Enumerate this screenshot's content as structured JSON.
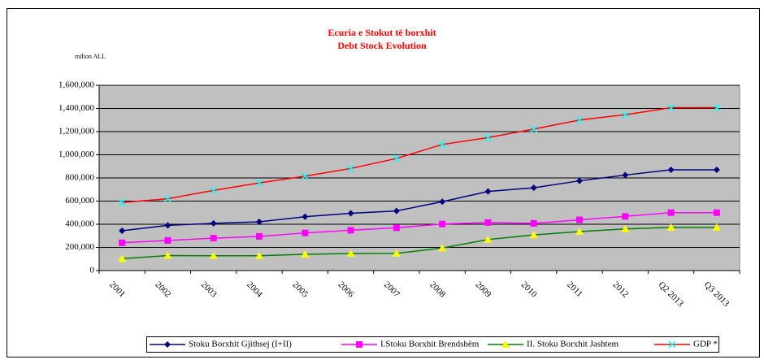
{
  "chart_data": {
    "type": "line",
    "title": "Ecuria e Stokut të borxhit",
    "subtitle": "Debt Stock Evolution",
    "y_axis_label": "milion ALL",
    "categories": [
      "2001",
      "2002",
      "2003",
      "2004",
      "2005",
      "2006",
      "2007",
      "2008",
      "2009",
      "2010",
      "2011",
      "2012",
      "Q2 2013",
      "Q3 2013"
    ],
    "series": [
      {
        "name": "Stoku Borxhit Gjithsej (I+II)",
        "color": "#000080",
        "marker_color": "#000080",
        "marker": "diamond",
        "values": [
          344000,
          390000,
          408000,
          421000,
          465000,
          495000,
          515000,
          595000,
          683000,
          715000,
          775000,
          825000,
          870000,
          870000
        ]
      },
      {
        "name": "I.Stoku Borxhit Brendshëm",
        "color": "#ff00ff",
        "marker_color": "#ff00ff",
        "marker": "square",
        "values": [
          240000,
          260000,
          280000,
          295000,
          325000,
          348000,
          370000,
          402000,
          415000,
          408000,
          438000,
          468000,
          500000,
          500000
        ]
      },
      {
        "name": "II. Stoku Borxhit Jashtem",
        "color": "#008000",
        "marker_color": "#ffff00",
        "marker": "triangle",
        "values": [
          103000,
          130000,
          128000,
          128000,
          140000,
          147000,
          148000,
          195000,
          268000,
          308000,
          337000,
          360000,
          373000,
          373000
        ]
      },
      {
        "name": "GDP *",
        "color": "#ff0000",
        "marker_color": "#00ffff",
        "marker": "x",
        "values": [
          588000,
          620000,
          692000,
          757000,
          815000,
          882000,
          968000,
          1089000,
          1148000,
          1222000,
          1300000,
          1346000,
          1407000,
          1407000
        ]
      }
    ],
    "ylim": [
      0,
      1600000
    ],
    "yticks": [
      0,
      {
        "value": 200000,
        "label": "200,000"
      },
      {
        "value": 400000,
        "label": "400,000"
      },
      {
        "value": 600000,
        "label": "600,000"
      },
      {
        "value": 800000,
        "label": "800,000"
      },
      {
        "value": 1000000,
        "label": "1,000,000"
      },
      {
        "value": 1200000,
        "label": "1,200,000"
      },
      {
        "value": 1400000,
        "label": "1,400,000"
      },
      {
        "value": 1600000,
        "label": "1,600,000"
      }
    ],
    "grid": true,
    "plot_background": "#c0c0c0",
    "legend": "bottom"
  }
}
